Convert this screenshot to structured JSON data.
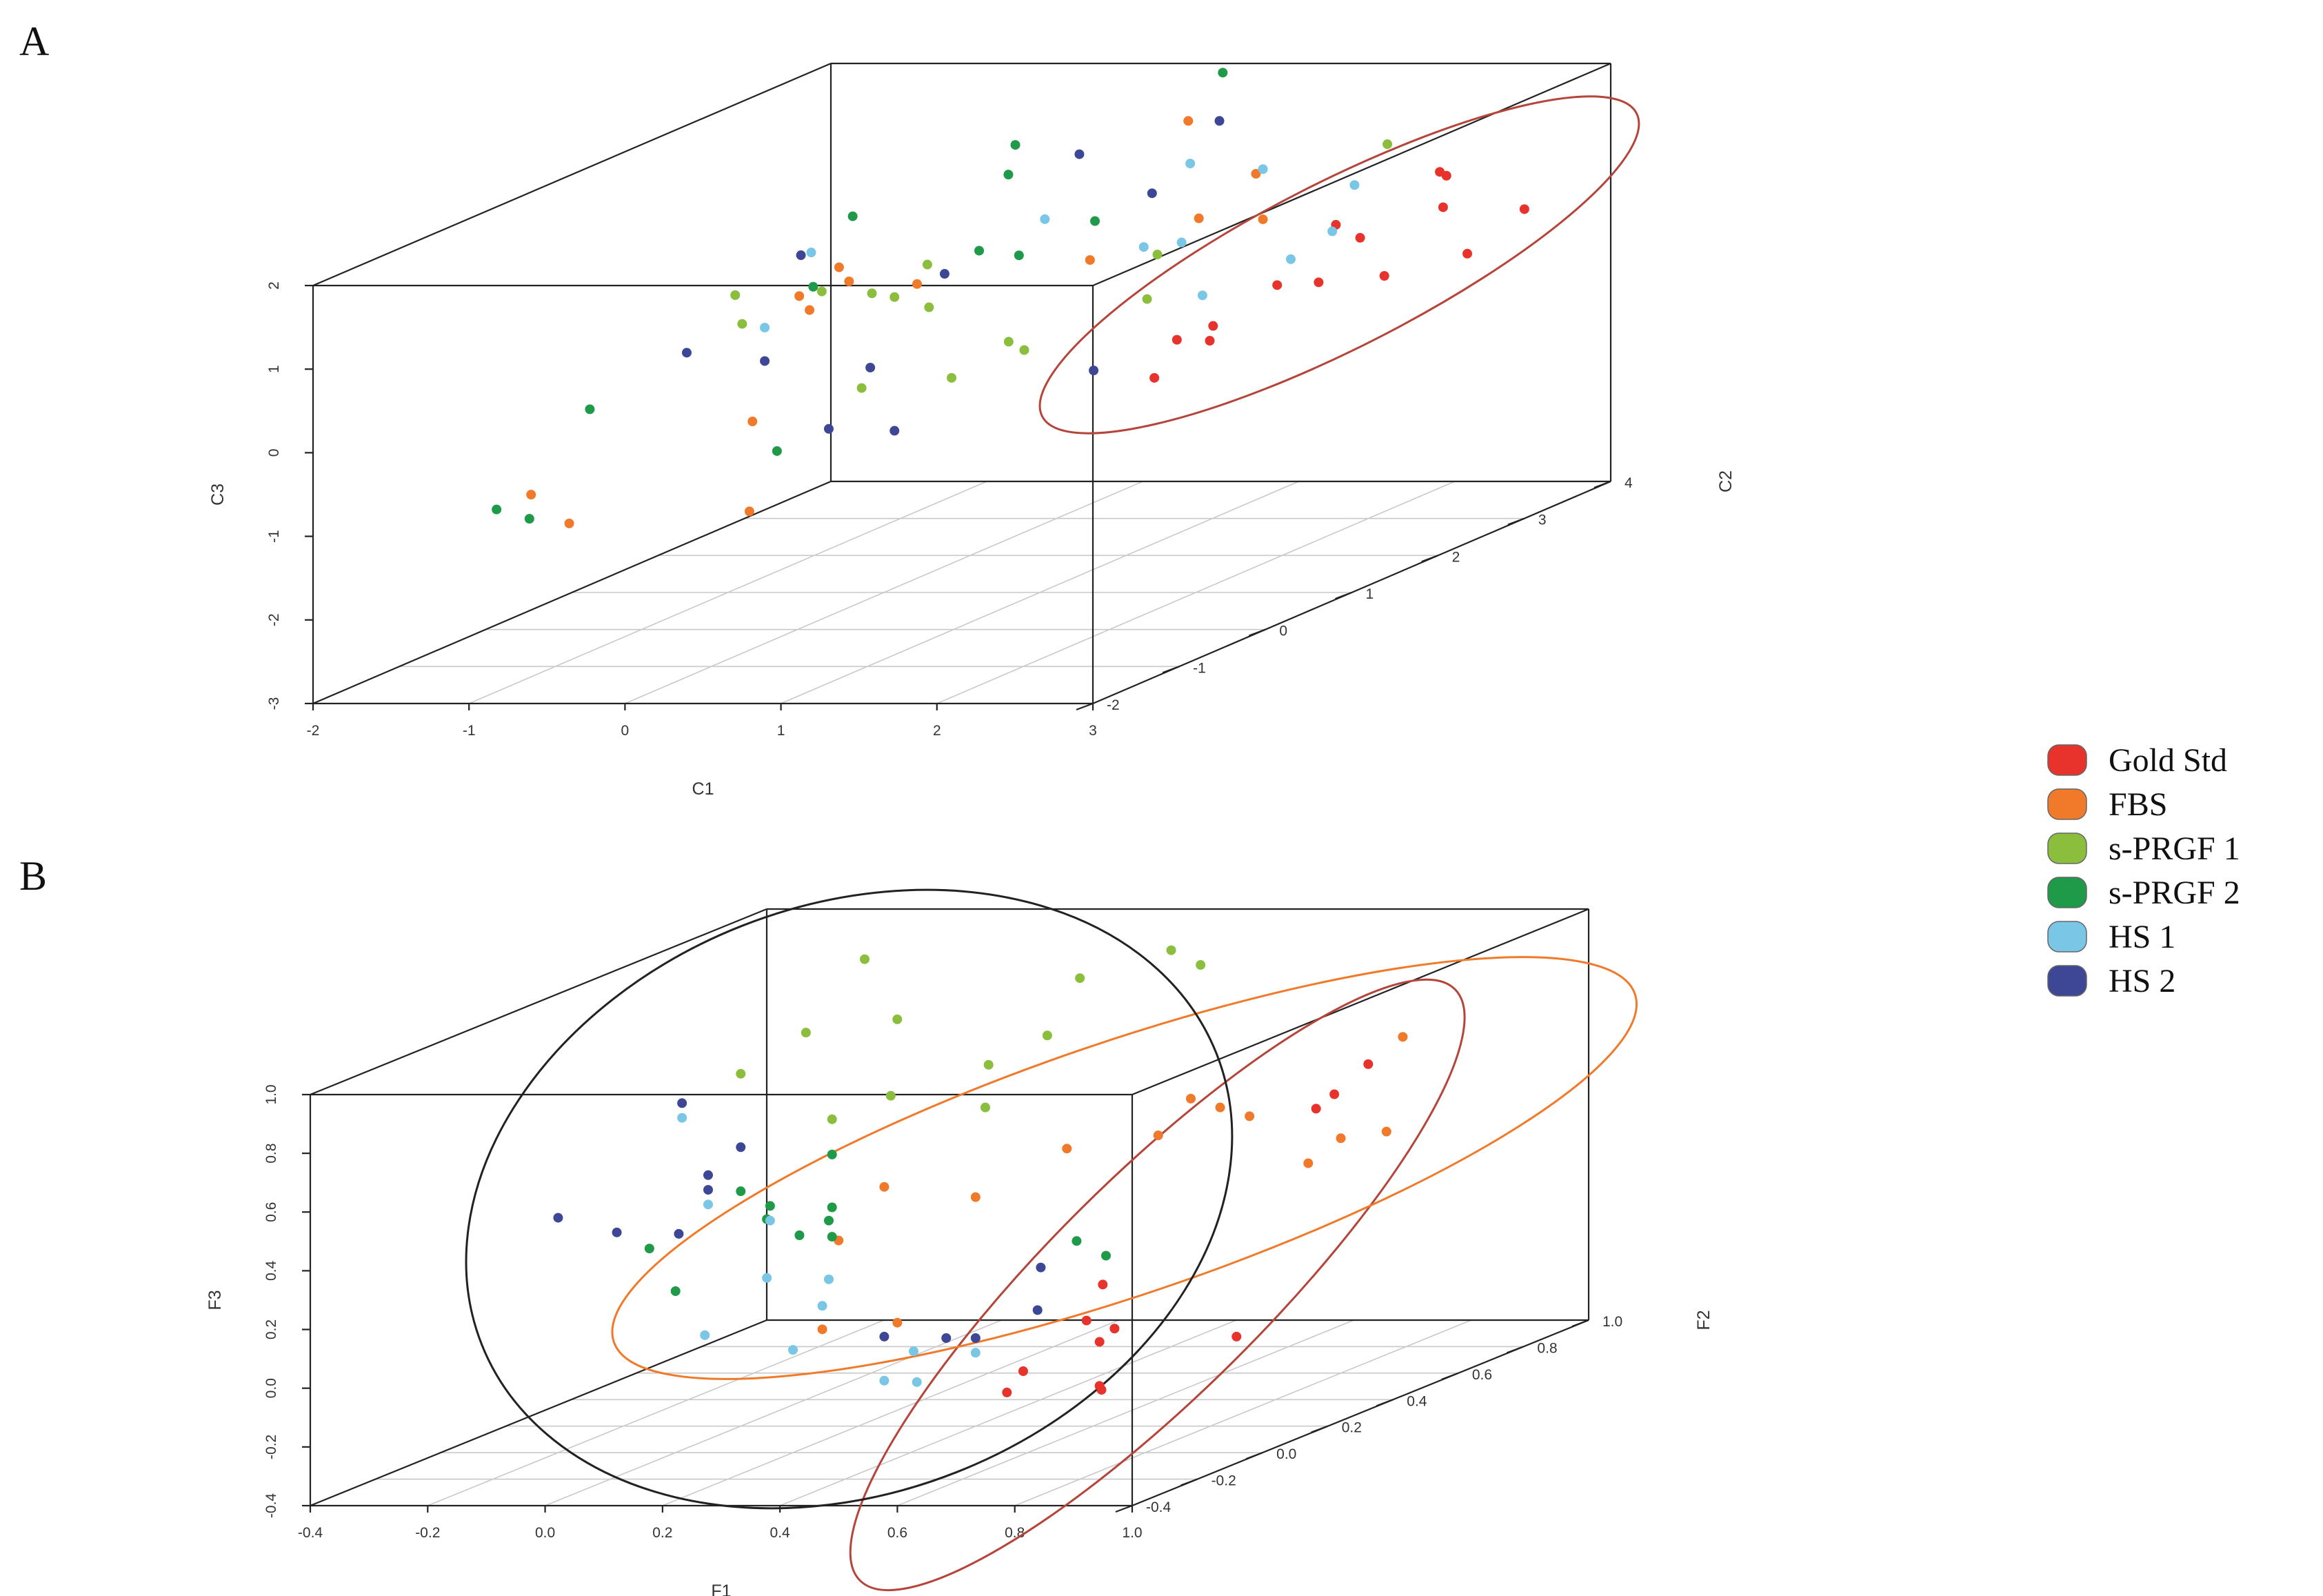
{
  "panels": [
    {
      "id": "A",
      "label": "A"
    },
    {
      "id": "B",
      "label": "B"
    }
  ],
  "legend": [
    {
      "label": "Gold Std",
      "color": "#e8322c"
    },
    {
      "label": "FBS",
      "color": "#f07a2a"
    },
    {
      "label": "s-PRGF 1",
      "color": "#8cbe3e"
    },
    {
      "label": "s-PRGF 2",
      "color": "#1f9a48"
    },
    {
      "label": "HS 1",
      "color": "#79c6e6"
    },
    {
      "label": "HS 2",
      "color": "#3d4796"
    }
  ],
  "chart_data": [
    {
      "type": "scatter",
      "panel": "A",
      "projection": "3d",
      "xlabel": "C1",
      "ylabel": "C2",
      "zlabel": "C3",
      "xlim": [
        -2,
        3
      ],
      "ylim": [
        -2,
        4
      ],
      "zlim": [
        -3,
        2
      ],
      "xticks": [
        "-2",
        "-1",
        "0",
        "1",
        "2",
        "3"
      ],
      "yticks": [
        "-2",
        "-1",
        "0",
        "1",
        "2",
        "3",
        "4"
      ],
      "zticks": [
        "-3",
        "-2",
        "-1",
        "0",
        "1",
        "2"
      ],
      "grid": true,
      "series": [
        {
          "name": "Gold Std",
          "points": [
            [
              2.9,
              2.2,
              1.5
            ],
            [
              2.5,
              3.0,
              1.1
            ],
            [
              3.0,
              3.0,
              0.7
            ],
            [
              2.7,
              2.6,
              0.9
            ],
            [
              2.4,
              1.9,
              1.0
            ],
            [
              2.5,
              2.0,
              0.8
            ],
            [
              2.0,
              1.2,
              0.1
            ],
            [
              2.4,
              1.7,
              0.4
            ],
            [
              2.6,
              2.1,
              0.3
            ],
            [
              2.3,
              1.4,
              0.5
            ],
            [
              1.9,
              0.7,
              -0.3
            ],
            [
              2.2,
              0.8,
              0.1
            ],
            [
              2.1,
              0.6,
              0.2
            ],
            [
              2.8,
              2.7,
              0.3
            ]
          ]
        },
        {
          "name": "FBS",
          "points": [
            [
              -0.5,
              1.5,
              0.5
            ],
            [
              -0.4,
              0.2,
              -0.6
            ],
            [
              -1.1,
              -1.1,
              -0.9
            ],
            [
              -0.8,
              -1.2,
              -1.2
            ],
            [
              0.3,
              -1.1,
              -1.1
            ],
            [
              0.9,
              2.9,
              1.8
            ],
            [
              1.1,
              1.4,
              0.8
            ],
            [
              1.5,
              2.6,
              1.3
            ],
            [
              0.1,
              0.3,
              1.2
            ],
            [
              -0.2,
              0.5,
              0.6
            ],
            [
              -0.1,
              0.2,
              0.9
            ],
            [
              0.6,
              0.3,
              1.0
            ],
            [
              1.3,
              2.3,
              0.9
            ],
            [
              1.6,
              2.5,
              0.8
            ]
          ]
        },
        {
          "name": "s-PRGF 1",
          "points": [
            [
              1.9,
              3.4,
              1.3
            ],
            [
              0.2,
              0.5,
              0.8
            ],
            [
              0.4,
              0.8,
              0.5
            ],
            [
              0.5,
              0.6,
              1.1
            ],
            [
              -0.4,
              0.0,
              1.0
            ],
            [
              -0.3,
              -0.1,
              0.7
            ],
            [
              0.8,
              1.0,
              0.0
            ],
            [
              1.3,
              1.7,
              0.2
            ],
            [
              0.9,
              1.0,
              -0.1
            ],
            [
              0.6,
              0.7,
              -0.3
            ],
            [
              0.3,
              0.2,
              -0.2
            ],
            [
              1.2,
              2.0,
              0.6
            ],
            [
              0.1,
              0.1,
              1.0
            ],
            [
              0.4,
              0.4,
              0.8
            ]
          ]
        },
        {
          "name": "s-PRGF 2",
          "points": [
            [
              0.9,
              3.3,
              2.2
            ],
            [
              0.4,
              1.8,
              2.0
            ],
            [
              -0.2,
              1.0,
              1.5
            ],
            [
              0.3,
              1.9,
              1.6
            ],
            [
              0.8,
              2.0,
              1.0
            ],
            [
              0.5,
              1.2,
              1.0
            ],
            [
              -1.0,
              -0.6,
              -0.1
            ],
            [
              -1.1,
              -1.5,
              -0.9
            ],
            [
              -1.0,
              -1.3,
              -1.1
            ],
            [
              0.2,
              -0.6,
              -0.6
            ],
            [
              0.1,
              0.0,
              1.1
            ],
            [
              0.7,
              1.3,
              0.9
            ]
          ]
        },
        {
          "name": "HS 1",
          "points": [
            [
              1.3,
              2.2,
              1.6
            ],
            [
              1.6,
              2.5,
              1.4
            ],
            [
              1.8,
              3.2,
              0.9
            ],
            [
              1.5,
              1.3,
              1.0
            ],
            [
              1.3,
              2.1,
              0.7
            ],
            [
              2.1,
              2.4,
              0.7
            ],
            [
              2.0,
              2.1,
              0.5
            ],
            [
              1.6,
              1.8,
              0.2
            ],
            [
              -0.3,
              0.7,
              1.2
            ],
            [
              0.7,
              1.6,
              1.2
            ],
            [
              -0.1,
              -0.2,
              0.7
            ]
          ]
        },
        {
          "name": "HS 2",
          "points": [
            [
              1.1,
              2.9,
              1.8
            ],
            [
              0.7,
              2.0,
              1.8
            ],
            [
              -0.2,
              0.4,
              1.3
            ],
            [
              0.5,
              0.8,
              0.9
            ],
            [
              1.0,
              2.3,
              1.2
            ],
            [
              -0.6,
              -0.2,
              0.4
            ],
            [
              -0.1,
              -0.2,
              0.3
            ],
            [
              0.4,
              0.4,
              -0.8
            ],
            [
              0.2,
              0.0,
              -0.6
            ],
            [
              1.4,
              0.9,
              -0.3
            ],
            [
              0.3,
              0.3,
              0.0
            ]
          ]
        }
      ],
      "ellipses": [
        {
          "group": "Gold Std",
          "color": "#b5453a"
        }
      ]
    },
    {
      "type": "scatter",
      "panel": "B",
      "projection": "3d",
      "xlabel": "F1",
      "ylabel": "F2",
      "zlabel": "F3",
      "xlim": [
        -0.4,
        1.0
      ],
      "ylim": [
        -0.4,
        1.0
      ],
      "zlim": [
        -0.4,
        1.0
      ],
      "xticks": [
        "-0.4",
        "-0.2",
        "0.0",
        "0.2",
        "0.4",
        "0.6",
        "0.8",
        "1.0"
      ],
      "yticks": [
        "-0.4",
        "-0.2",
        "0.0",
        "0.2",
        "0.4",
        "0.6",
        "0.8",
        "1.0"
      ],
      "zticks": [
        "-0.4",
        "-0.2",
        "0.0",
        "0.2",
        "0.4",
        "0.6",
        "0.8",
        "1.0"
      ],
      "grid": true,
      "series": [
        {
          "name": "Gold Std",
          "points": [
            [
              0.93,
              0.45,
              0.72
            ],
            [
              0.9,
              0.4,
              0.64
            ],
            [
              0.88,
              0.38,
              0.6
            ],
            [
              0.9,
              0.1,
              -0.05
            ],
            [
              0.7,
              0.05,
              0.15
            ],
            [
              0.7,
              0.0,
              0.05
            ],
            [
              0.72,
              0.05,
              0.0
            ],
            [
              0.75,
              -0.05,
              0.0
            ],
            [
              0.62,
              -0.05,
              -0.1
            ],
            [
              0.62,
              -0.1,
              -0.15
            ],
            [
              0.75,
              -0.05,
              -0.15
            ],
            [
              0.77,
              -0.08,
              -0.15
            ]
          ]
        },
        {
          "name": "FBS",
          "points": [
            [
              0.85,
              0.7,
              0.7
            ],
            [
              0.6,
              0.5,
              0.58
            ],
            [
              0.5,
              0.3,
              0.5
            ],
            [
              0.6,
              0.4,
              0.5
            ],
            [
              0.7,
              0.5,
              0.52
            ],
            [
              0.8,
              0.6,
              0.4
            ],
            [
              0.85,
              0.65,
              0.4
            ],
            [
              0.8,
              0.5,
              0.36
            ],
            [
              0.3,
              0.1,
              0.46
            ],
            [
              0.25,
              0.05,
              0.3
            ],
            [
              0.35,
              0.05,
              0.02
            ],
            [
              0.25,
              0.0,
              0.02
            ],
            [
              0.4,
              0.2,
              0.38
            ],
            [
              0.65,
              0.5,
              0.55
            ]
          ]
        },
        {
          "name": "s-PRGF 1",
          "points": [
            [
              0.1,
              0.4,
              1.1
            ],
            [
              0.4,
              0.8,
              0.95
            ],
            [
              0.3,
              0.7,
              0.9
            ],
            [
              0.0,
              0.4,
              0.85
            ],
            [
              0.1,
              0.5,
              0.85
            ],
            [
              0.2,
              0.6,
              0.65
            ],
            [
              0.0,
              0.2,
              0.8
            ],
            [
              0.2,
              0.3,
              0.68
            ],
            [
              0.25,
              0.5,
              0.55
            ],
            [
              0.1,
              0.3,
              0.6
            ],
            [
              0.45,
              0.8,
              0.9
            ],
            [
              0.3,
              0.6,
              0.75
            ]
          ]
        },
        {
          "name": "s-PRGF 2",
          "points": [
            [
              0.1,
              0.3,
              0.3
            ],
            [
              0.05,
              0.2,
              0.35
            ],
            [
              0.1,
              0.3,
              0.48
            ],
            [
              0.0,
              0.2,
              0.4
            ],
            [
              0.1,
              0.3,
              0.2
            ],
            [
              -0.1,
              0.1,
              0.25
            ],
            [
              0.0,
              0.0,
              0.15
            ],
            [
              0.1,
              0.2,
              0.25
            ],
            [
              0.35,
              0.6,
              0.05
            ],
            [
              0.4,
              0.6,
              0.0
            ],
            [
              0.1,
              0.1,
              0.35
            ],
            [
              0.15,
              0.2,
              0.3
            ]
          ]
        },
        {
          "name": "HS 1",
          "points": [
            [
              -0.1,
              0.2,
              0.65
            ],
            [
              0.0,
              0.1,
              0.4
            ],
            [
              0.05,
              0.2,
              0.3
            ],
            [
              0.1,
              0.1,
              0.15
            ],
            [
              0.15,
              0.2,
              0.1
            ],
            [
              0.05,
              0.0,
              0.0
            ],
            [
              0.2,
              0.0,
              -0.05
            ],
            [
              0.3,
              0.1,
              -0.2
            ],
            [
              0.3,
              0.2,
              -0.25
            ],
            [
              0.4,
              0.2,
              -0.15
            ],
            [
              0.35,
              0.1,
              -0.1
            ],
            [
              0.25,
              0.0,
              0.1
            ]
          ]
        },
        {
          "name": "HS 2",
          "points": [
            [
              -0.2,
              0.0,
              0.4
            ],
            [
              -0.1,
              0.0,
              0.35
            ],
            [
              0.0,
              0.1,
              0.5
            ],
            [
              0.0,
              0.1,
              0.45
            ],
            [
              -0.1,
              0.2,
              0.7
            ],
            [
              0.0,
              0.2,
              0.55
            ],
            [
              0.3,
              0.1,
              -0.05
            ],
            [
              0.35,
              0.2,
              -0.1
            ],
            [
              0.4,
              0.2,
              -0.1
            ],
            [
              0.45,
              0.3,
              -0.05
            ],
            [
              -0.05,
              0.1,
              0.3
            ],
            [
              0.4,
              0.4,
              0.05
            ]
          ]
        }
      ],
      "ellipses": [
        {
          "group": "Gold Std",
          "color": "#b5453a"
        },
        {
          "group": "FBS",
          "color": "#f07a2a"
        },
        {
          "group": "s-PRGF 1, s-PRGF 2, HS 1, HS 2",
          "color": "#222222"
        }
      ]
    }
  ]
}
